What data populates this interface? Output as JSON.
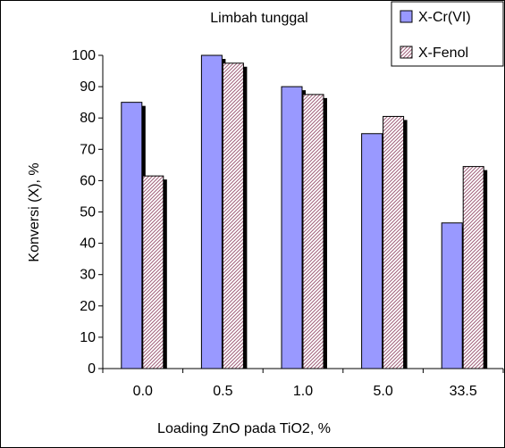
{
  "chart_data": {
    "type": "bar",
    "title": "Limbah tunggal",
    "xlabel": "Loading ZnO pada TiO2, %",
    "ylabel": "Konversi (X), %",
    "categories": [
      "0.0",
      "0.5",
      "1.0",
      "5.0",
      "33.5"
    ],
    "ylim": [
      0,
      100
    ],
    "yticks": [
      0,
      10,
      20,
      30,
      40,
      50,
      60,
      70,
      80,
      90,
      100
    ],
    "grid": false,
    "legend_position": "top-right",
    "series": [
      {
        "name": "X-Cr(VI)",
        "values": [
          85,
          100,
          90,
          75,
          46.5
        ],
        "color": "#9999ff",
        "pattern": "solid"
      },
      {
        "name": "X-Fenol",
        "values": [
          61.5,
          97.5,
          87.5,
          80.5,
          64.5
        ],
        "color": "#cc99a6",
        "pattern": "diagonal-hatch"
      }
    ]
  }
}
